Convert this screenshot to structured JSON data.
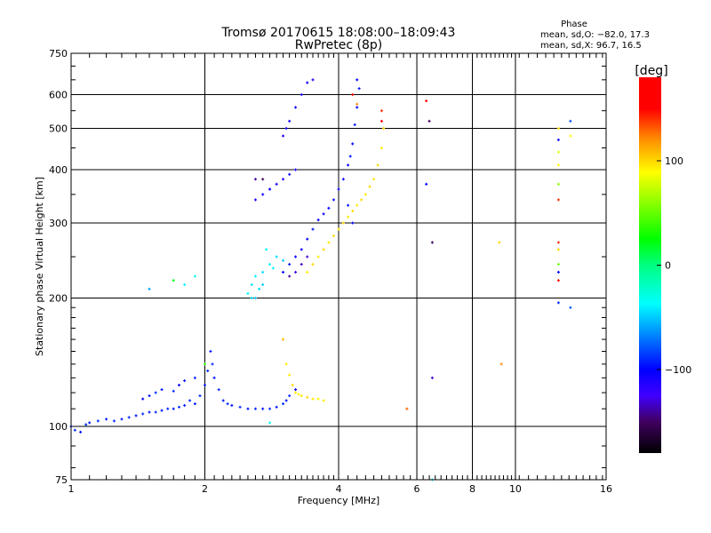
{
  "chart_data": {
    "type": "scatter",
    "title": "Tromsø 20170615 18:08:00–18:09:43",
    "subtitle": "RwPretec (8p)",
    "xlabel": "Frequency [MHz]",
    "ylabel": "Stationary phase Virtual Height [km]",
    "xscale": "log",
    "yscale": "log",
    "xlim": [
      1,
      16
    ],
    "ylim": [
      75,
      750
    ],
    "xticks": [
      1,
      2,
      4,
      6,
      8,
      10,
      16
    ],
    "yticks": [
      75,
      100,
      200,
      300,
      400,
      500,
      600,
      750
    ],
    "grid": true,
    "phase_info": {
      "title": "Phase",
      "line_o": "mean, sd,O: −82.0, 17.3",
      "line_x": "mean, sd,X:  96.7, 16.5"
    },
    "colorbar": {
      "label": "[deg]",
      "range": [
        -180,
        180
      ],
      "ticks": [
        {
          "value": 100,
          "label": "100"
        },
        {
          "value": 0,
          "label": "0"
        },
        {
          "value": -100,
          "label": "−100"
        }
      ],
      "stops": [
        [
          -180,
          "#000000"
        ],
        [
          -150,
          "#400060"
        ],
        [
          -125,
          "#4000ff"
        ],
        [
          -100,
          "#0000ff"
        ],
        [
          -37,
          "#00ffff"
        ],
        [
          0,
          "#00ff80"
        ],
        [
          25,
          "#00ff00"
        ],
        [
          89,
          "#ffff00"
        ],
        [
          120,
          "#ff9000"
        ],
        [
          150,
          "#ff0000"
        ],
        [
          180,
          "#ff0000"
        ]
      ]
    },
    "point_format": [
      "frequency_MHz",
      "height_km",
      "phase_deg"
    ],
    "points": [
      [
        1.0,
        100,
        -95
      ],
      [
        1.02,
        98,
        -90
      ],
      [
        1.05,
        97,
        -95
      ],
      [
        1.08,
        101,
        -90
      ],
      [
        1.1,
        102,
        -95
      ],
      [
        1.15,
        103,
        -90
      ],
      [
        1.2,
        104,
        -95
      ],
      [
        1.25,
        103,
        -90
      ],
      [
        1.3,
        104,
        -95
      ],
      [
        1.35,
        105,
        -90
      ],
      [
        1.4,
        106,
        -95
      ],
      [
        1.45,
        107,
        -90
      ],
      [
        1.5,
        108,
        -95
      ],
      [
        1.55,
        108,
        -90
      ],
      [
        1.6,
        109,
        -95
      ],
      [
        1.65,
        110,
        -90
      ],
      [
        1.7,
        110,
        -95
      ],
      [
        1.75,
        111,
        -90
      ],
      [
        1.8,
        112,
        -95
      ],
      [
        1.85,
        115,
        -90
      ],
      [
        1.9,
        113,
        -95
      ],
      [
        1.95,
        118,
        -90
      ],
      [
        2.0,
        125,
        -95
      ],
      [
        2.03,
        135,
        -90
      ],
      [
        2.06,
        150,
        -95
      ],
      [
        2.08,
        140,
        -90
      ],
      [
        2.1,
        130,
        -95
      ],
      [
        2.15,
        122,
        -90
      ],
      [
        2.2,
        115,
        -95
      ],
      [
        2.25,
        113,
        -90
      ],
      [
        2.3,
        112,
        -95
      ],
      [
        2.4,
        111,
        -90
      ],
      [
        2.5,
        110,
        -95
      ],
      [
        2.6,
        110,
        -90
      ],
      [
        2.7,
        110,
        -95
      ],
      [
        2.8,
        110,
        -90
      ],
      [
        2.9,
        111,
        -95
      ],
      [
        3.0,
        113,
        -90
      ],
      [
        3.05,
        115,
        -95
      ],
      [
        3.1,
        118,
        -90
      ],
      [
        3.2,
        122,
        -100
      ],
      [
        1.45,
        116,
        -100
      ],
      [
        1.5,
        118,
        -95
      ],
      [
        1.55,
        120,
        -90
      ],
      [
        1.6,
        122,
        -95
      ],
      [
        1.7,
        121,
        -90
      ],
      [
        1.75,
        125,
        -100
      ],
      [
        1.8,
        128,
        -95
      ],
      [
        1.9,
        130,
        -90
      ],
      [
        3.05,
        140,
        95
      ],
      [
        3.1,
        132,
        95
      ],
      [
        3.15,
        125,
        100
      ],
      [
        3.2,
        120,
        95
      ],
      [
        3.25,
        119,
        90
      ],
      [
        3.3,
        118,
        95
      ],
      [
        3.4,
        117,
        100
      ],
      [
        3.5,
        116,
        95
      ],
      [
        3.6,
        116,
        90
      ],
      [
        3.7,
        115,
        95
      ],
      [
        2.5,
        205,
        -40
      ],
      [
        2.55,
        215,
        -45
      ],
      [
        2.6,
        225,
        -40
      ],
      [
        2.7,
        230,
        -45
      ],
      [
        2.8,
        240,
        -40
      ],
      [
        2.6,
        200,
        -50
      ],
      [
        2.65,
        210,
        -45
      ],
      [
        2.75,
        260,
        -40
      ],
      [
        2.9,
        250,
        -45
      ],
      [
        3.0,
        245,
        -50
      ],
      [
        2.55,
        200,
        -45
      ],
      [
        2.7,
        215,
        -50
      ],
      [
        2.85,
        235,
        -40
      ],
      [
        3.0,
        230,
        -100
      ],
      [
        3.1,
        240,
        -95
      ],
      [
        3.2,
        250,
        -100
      ],
      [
        3.3,
        260,
        -105
      ],
      [
        3.4,
        275,
        -100
      ],
      [
        3.5,
        290,
        -95
      ],
      [
        3.6,
        305,
        -100
      ],
      [
        3.7,
        315,
        -105
      ],
      [
        3.8,
        325,
        -100
      ],
      [
        3.9,
        340,
        -95
      ],
      [
        4.0,
        360,
        -100
      ],
      [
        4.1,
        380,
        -105
      ],
      [
        4.2,
        410,
        -100
      ],
      [
        4.25,
        430,
        -95
      ],
      [
        4.3,
        460,
        -100
      ],
      [
        4.35,
        510,
        -95
      ],
      [
        4.4,
        560,
        -100
      ],
      [
        4.45,
        620,
        -95
      ],
      [
        4.4,
        650,
        -100
      ],
      [
        4.3,
        300,
        -100
      ],
      [
        4.2,
        330,
        -95
      ],
      [
        3.2,
        230,
        -130
      ],
      [
        3.3,
        240,
        -135
      ],
      [
        3.4,
        250,
        -130
      ],
      [
        3.1,
        225,
        -140
      ],
      [
        3.0,
        480,
        -110
      ],
      [
        3.05,
        500,
        -105
      ],
      [
        3.1,
        520,
        -110
      ],
      [
        3.2,
        560,
        -105
      ],
      [
        3.3,
        600,
        -110
      ],
      [
        3.4,
        640,
        -105
      ],
      [
        3.5,
        650,
        -110
      ],
      [
        2.6,
        340,
        -110
      ],
      [
        2.7,
        350,
        -105
      ],
      [
        2.8,
        360,
        -110
      ],
      [
        2.9,
        370,
        -105
      ],
      [
        3.0,
        380,
        -110
      ],
      [
        3.1,
        390,
        -105
      ],
      [
        3.2,
        400,
        -110
      ],
      [
        3.4,
        230,
        95
      ],
      [
        3.5,
        240,
        100
      ],
      [
        3.6,
        250,
        95
      ],
      [
        3.7,
        260,
        100
      ],
      [
        3.8,
        270,
        95
      ],
      [
        3.9,
        280,
        100
      ],
      [
        4.0,
        290,
        95
      ],
      [
        4.1,
        300,
        100
      ],
      [
        4.2,
        310,
        95
      ],
      [
        4.3,
        320,
        100
      ],
      [
        4.4,
        330,
        95
      ],
      [
        4.5,
        340,
        100
      ],
      [
        4.6,
        350,
        95
      ],
      [
        4.7,
        365,
        100
      ],
      [
        4.8,
        380,
        95
      ],
      [
        4.9,
        410,
        100
      ],
      [
        5.0,
        450,
        95
      ],
      [
        5.05,
        500,
        100
      ],
      [
        1.5,
        210,
        -60
      ],
      [
        1.7,
        220,
        20
      ],
      [
        1.8,
        215,
        -40
      ],
      [
        1.9,
        225,
        -30
      ],
      [
        2.7,
        380,
        -150
      ],
      [
        2.8,
        360,
        -100
      ],
      [
        6.3,
        580,
        150
      ],
      [
        6.4,
        520,
        -150
      ],
      [
        6.5,
        270,
        -150
      ],
      [
        6.3,
        370,
        -100
      ],
      [
        5.7,
        110,
        130
      ],
      [
        6.5,
        130,
        -130
      ],
      [
        9.3,
        140,
        120
      ],
      [
        9.2,
        270,
        100
      ],
      [
        12.5,
        500,
        100
      ],
      [
        12.5,
        470,
        -110
      ],
      [
        12.5,
        440,
        80
      ],
      [
        12.5,
        410,
        90
      ],
      [
        12.5,
        370,
        60
      ],
      [
        12.5,
        340,
        140
      ],
      [
        12.5,
        270,
        140
      ],
      [
        12.5,
        260,
        100
      ],
      [
        12.5,
        240,
        50
      ],
      [
        12.5,
        230,
        -100
      ],
      [
        12.5,
        220,
        180
      ],
      [
        12.5,
        195,
        -90
      ],
      [
        13.3,
        520,
        -80
      ],
      [
        13.3,
        480,
        90
      ],
      [
        13.3,
        190,
        -80
      ],
      [
        4.3,
        600,
        150
      ],
      [
        4.4,
        570,
        120
      ],
      [
        5.0,
        550,
        140
      ],
      [
        5.0,
        520,
        150
      ],
      [
        3.0,
        160,
        110
      ],
      [
        2.0,
        140,
        40
      ],
      [
        2.8,
        102,
        -30
      ],
      [
        2.6,
        380,
        -140
      ],
      [
        6.5,
        75,
        -40
      ]
    ]
  }
}
